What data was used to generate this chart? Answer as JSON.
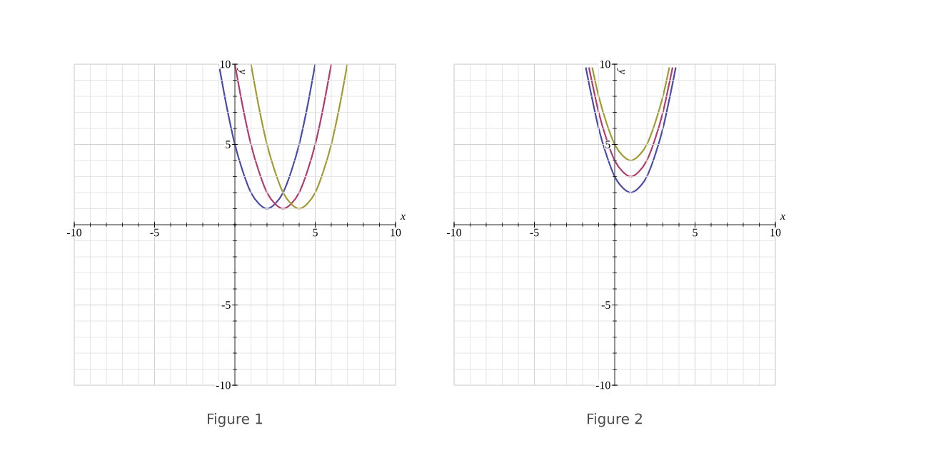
{
  "chart_data": [
    {
      "type": "line",
      "title": "Figure 1",
      "xlabel": "x",
      "ylabel": "y",
      "xlim": [
        -10,
        10
      ],
      "ylim": [
        -10,
        10
      ],
      "xticks": [
        -10,
        -5,
        5,
        10
      ],
      "yticks": [
        -10,
        -5,
        5,
        10
      ],
      "grid": true,
      "marker": "none",
      "line_style": "solid",
      "series": [
        {
          "color": "#4a4aa8",
          "x": [
            -1,
            -0.5,
            0,
            0.5,
            1,
            1.5,
            2,
            2.5,
            3,
            3.5,
            4,
            4.5,
            5
          ],
          "values": [
            10,
            7.3,
            5,
            3.3,
            2,
            1.3,
            1,
            1.3,
            2,
            3.3,
            5,
            7.3,
            10
          ]
        },
        {
          "color": "#b03c6e",
          "x": [
            0,
            0.5,
            1,
            1.5,
            2,
            2.5,
            3,
            3.5,
            4,
            4.5,
            5,
            5.5,
            6
          ],
          "values": [
            10,
            7.3,
            5,
            3.3,
            2,
            1.3,
            1,
            1.3,
            2,
            3.3,
            5,
            7.3,
            10
          ]
        },
        {
          "color": "#a09a30",
          "x": [
            1,
            1.5,
            2,
            2.5,
            3,
            3.5,
            4,
            4.5,
            5,
            5.5,
            6,
            6.5,
            7
          ],
          "values": [
            10,
            7.3,
            5,
            3.3,
            2,
            1.3,
            1,
            1.3,
            2,
            3.3,
            5,
            7.3,
            10
          ]
        }
      ]
    },
    {
      "type": "line",
      "title": "Figure 2",
      "xlabel": "x",
      "ylabel": "y",
      "xlim": [
        -10,
        10
      ],
      "ylim": [
        -10,
        10
      ],
      "xticks": [
        -10,
        -5,
        5,
        10
      ],
      "yticks": [
        -10,
        -5,
        5,
        10
      ],
      "grid": true,
      "marker": "none",
      "line_style": "solid",
      "series": [
        {
          "color": "#4a4aa8",
          "x": [
            -1.8,
            -1.5,
            -1,
            -0.5,
            0,
            0.5,
            1,
            1.5,
            2,
            2.5,
            3,
            3.5,
            3.8
          ],
          "values": [
            9.8,
            8.3,
            6,
            4.3,
            3,
            2.3,
            2,
            2.3,
            3,
            4.3,
            6,
            8.3,
            9.8
          ]
        },
        {
          "color": "#b03c6e",
          "x": [
            -1.6,
            -1.5,
            -1,
            -0.5,
            0,
            0.5,
            1,
            1.5,
            2,
            2.5,
            3,
            3.5,
            3.6
          ],
          "values": [
            9.8,
            9.3,
            7,
            5.3,
            4,
            3.3,
            3,
            3.3,
            4,
            5.3,
            7,
            9.3,
            9.8
          ]
        },
        {
          "color": "#a09a30",
          "x": [
            -1.4,
            -1,
            -0.5,
            0,
            0.5,
            1,
            1.5,
            2,
            2.5,
            3,
            3.4
          ],
          "values": [
            9.8,
            8,
            6.3,
            5,
            4.3,
            4,
            4.3,
            5,
            6.3,
            8,
            9.8
          ]
        }
      ]
    }
  ]
}
